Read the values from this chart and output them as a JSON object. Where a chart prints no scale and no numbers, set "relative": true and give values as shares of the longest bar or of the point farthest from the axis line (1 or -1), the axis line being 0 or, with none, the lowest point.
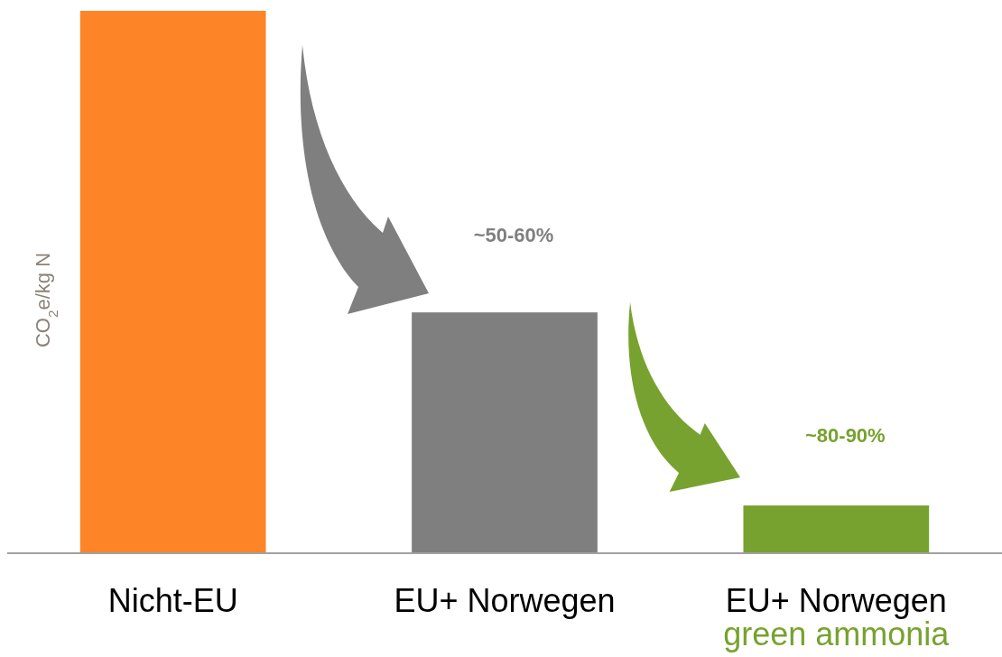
{
  "chart_data": {
    "type": "bar",
    "relative": true,
    "ylabel": "CO$_{2}$e/kg N",
    "categories": [
      "Nicht-EU",
      "EU+ Norwegen",
      "EU+ Norwegen\ngreen ammonia"
    ],
    "values": [
      1,
      0.444,
      0.088
    ],
    "colors": [
      "#fd8427",
      "#7f7f7f",
      "#77a22f"
    ],
    "annotations": [
      "~50-60%",
      "~80-90%"
    ]
  }
}
